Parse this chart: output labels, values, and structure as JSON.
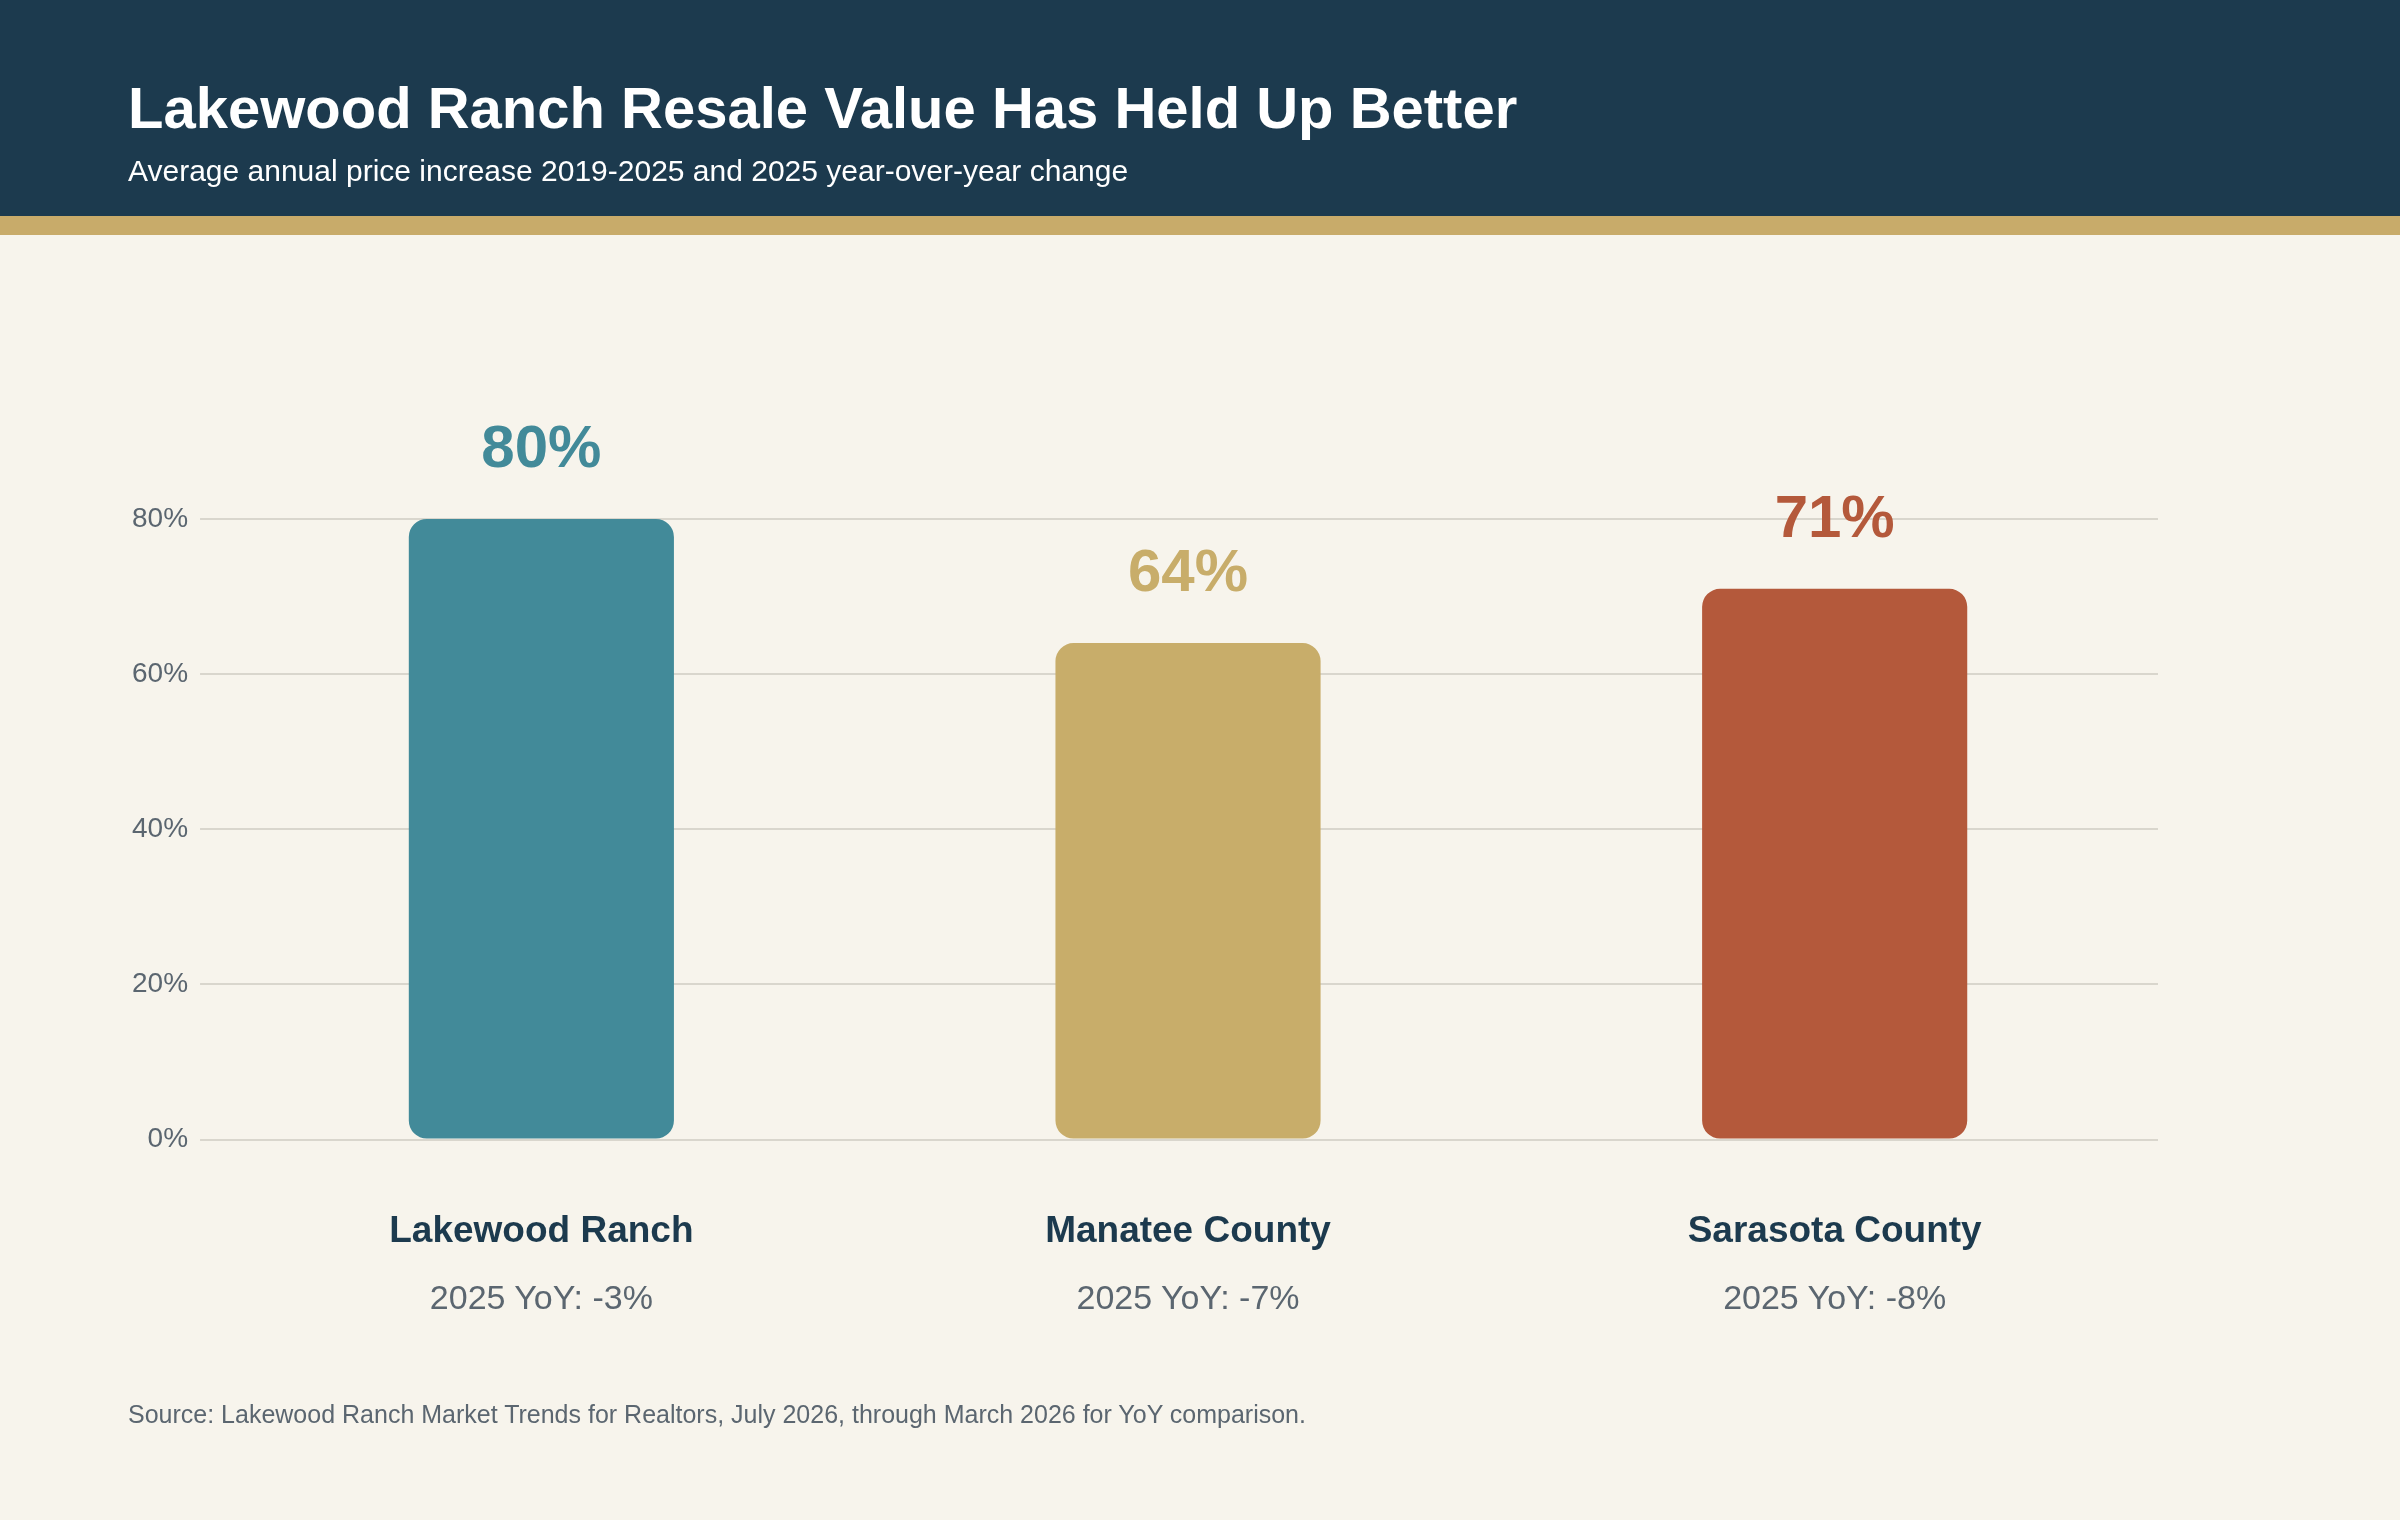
{
  "chart_data": {
    "type": "bar",
    "title": "Lakewood Ranch Resale Value Has Held Up Better",
    "subtitle": "Average annual price increase 2019-2025 and 2025 year-over-year change",
    "categories": [
      "Lakewood Ranch",
      "Manatee County",
      "Sarasota County"
    ],
    "values": [
      80,
      64,
      71
    ],
    "colors": [
      "#428a99",
      "#c8ad6a",
      "#b4593b"
    ],
    "value_labels": [
      "80%",
      "64%",
      "71%"
    ],
    "ylim": [
      0,
      80
    ],
    "yticks": [
      {
        "value": 0,
        "label": "0%"
      },
      {
        "value": 20,
        "label": "20%"
      },
      {
        "value": 40,
        "label": "40%"
      },
      {
        "value": 60,
        "label": "60%"
      },
      {
        "value": 80,
        "label": "80%"
      }
    ],
    "grid": "y",
    "legend": false,
    "annotations": [
      "2025 YoY: -3%",
      "2025 YoY: -7%",
      "2025 YoY: -8%",
      "Source: Lakewood Ranch Market Trends for Realtors, July 2026, through March 2026 for YoY comparison."
    ]
  }
}
